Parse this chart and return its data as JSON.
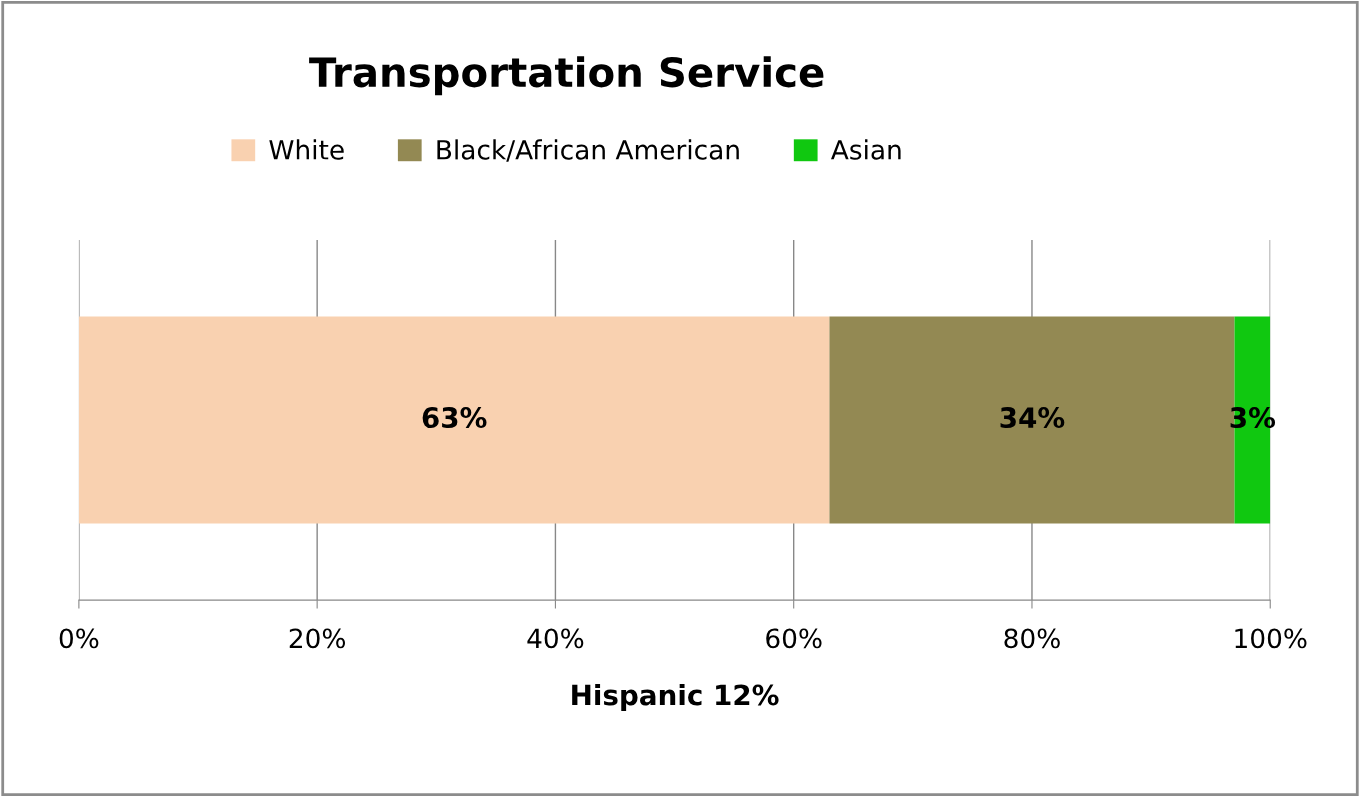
{
  "chart_data": {
    "type": "bar",
    "orientation": "horizontal",
    "stacked": true,
    "title": "Transportation Service",
    "xlabel": "Hispanic 12%",
    "categories": [
      null
    ],
    "series": [
      {
        "name": "White",
        "color": "#f9d1b0",
        "values": [
          63
        ],
        "value_labels": [
          "63%"
        ]
      },
      {
        "name": "Black/African American",
        "color": "#938953",
        "values": [
          34
        ],
        "value_labels": [
          "34%"
        ]
      },
      {
        "name": "Asian",
        "color": "#10c810",
        "values": [
          3
        ],
        "value_labels": [
          "3%"
        ]
      }
    ],
    "xlim": [
      0,
      100
    ],
    "xticks": [
      {
        "value": 0,
        "label": "0%"
      },
      {
        "value": 20,
        "label": "20%"
      },
      {
        "value": 40,
        "label": "40%"
      },
      {
        "value": 60,
        "label": "60%"
      },
      {
        "value": 80,
        "label": "80%"
      },
      {
        "value": 100,
        "label": "100%"
      }
    ],
    "tick_labels": "x",
    "grid": "x",
    "legend": "top"
  }
}
